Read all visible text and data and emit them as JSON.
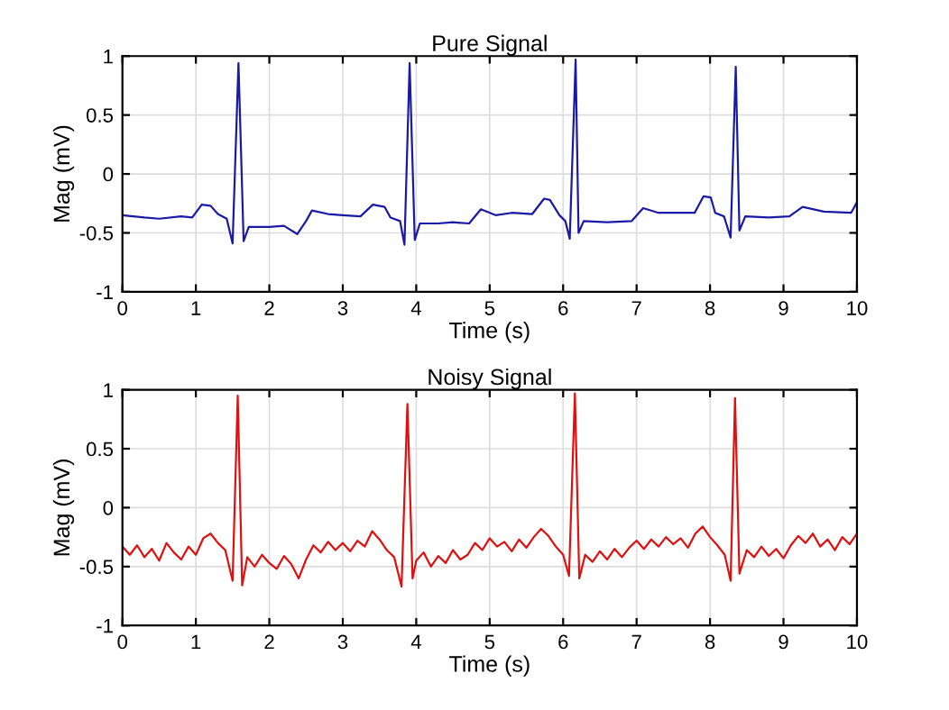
{
  "chart_data": [
    {
      "type": "line",
      "title": "Pure Signal",
      "xlabel": "Time (s)",
      "ylabel": "Mag (mV)",
      "xlim": [
        0,
        10
      ],
      "ylim": [
        -1,
        1
      ],
      "xticks": [
        0,
        1,
        2,
        3,
        4,
        5,
        6,
        7,
        8,
        9,
        10
      ],
      "yticks": [
        -1,
        -0.5,
        0,
        0.5,
        1
      ],
      "grid": true,
      "legend": false,
      "series": [
        {
          "color": "#1a1aa6",
          "x": [
            0,
            0.3,
            0.5,
            0.8,
            0.95,
            1.08,
            1.2,
            1.3,
            1.42,
            1.5,
            1.58,
            1.65,
            1.72,
            2.0,
            2.2,
            2.38,
            2.5,
            2.58,
            2.8,
            3.0,
            3.24,
            3.41,
            3.57,
            3.65,
            3.78,
            3.84,
            3.91,
            3.98,
            4.05,
            4.3,
            4.5,
            4.72,
            4.88,
            5.08,
            5.3,
            5.58,
            5.74,
            5.82,
            5.95,
            6.03,
            6.09,
            6.17,
            6.21,
            6.28,
            6.6,
            6.93,
            7.09,
            7.3,
            7.55,
            7.79,
            7.91,
            8.01,
            8.07,
            8.19,
            8.28,
            8.35,
            8.4,
            8.48,
            8.8,
            9.08,
            9.26,
            9.55,
            9.92,
            10
          ],
          "values": [
            -0.35,
            -0.37,
            -0.38,
            -0.36,
            -0.37,
            -0.26,
            -0.27,
            -0.34,
            -0.38,
            -0.59,
            0.94,
            -0.57,
            -0.45,
            -0.45,
            -0.44,
            -0.51,
            -0.4,
            -0.31,
            -0.34,
            -0.35,
            -0.36,
            -0.26,
            -0.28,
            -0.37,
            -0.4,
            -0.6,
            0.94,
            -0.56,
            -0.42,
            -0.42,
            -0.41,
            -0.42,
            -0.3,
            -0.35,
            -0.33,
            -0.34,
            -0.21,
            -0.22,
            -0.35,
            -0.4,
            -0.55,
            0.97,
            -0.5,
            -0.4,
            -0.41,
            -0.4,
            -0.29,
            -0.33,
            -0.33,
            -0.33,
            -0.19,
            -0.2,
            -0.33,
            -0.36,
            -0.54,
            0.91,
            -0.48,
            -0.36,
            -0.37,
            -0.36,
            -0.28,
            -0.32,
            -0.33,
            -0.24
          ]
        }
      ]
    },
    {
      "type": "line",
      "title": "Noisy Signal",
      "xlabel": "Time (s)",
      "ylabel": "Mag (mV)",
      "xlim": [
        0,
        10
      ],
      "ylim": [
        -1,
        1
      ],
      "xticks": [
        0,
        1,
        2,
        3,
        4,
        5,
        6,
        7,
        8,
        9,
        10
      ],
      "yticks": [
        -1,
        -0.5,
        0,
        0.5,
        1
      ],
      "grid": true,
      "legend": false,
      "series": [
        {
          "color": "#e01010",
          "x": [
            0,
            0.1,
            0.2,
            0.3,
            0.4,
            0.5,
            0.6,
            0.7,
            0.8,
            0.9,
            1.0,
            1.1,
            1.2,
            1.3,
            1.4,
            1.5,
            1.57,
            1.63,
            1.7,
            1.8,
            1.9,
            2.0,
            2.1,
            2.2,
            2.3,
            2.4,
            2.5,
            2.6,
            2.7,
            2.8,
            2.9,
            3.0,
            3.1,
            3.2,
            3.3,
            3.4,
            3.5,
            3.6,
            3.7,
            3.8,
            3.88,
            3.95,
            4.0,
            4.1,
            4.2,
            4.3,
            4.4,
            4.5,
            4.6,
            4.7,
            4.8,
            4.9,
            5.0,
            5.1,
            5.2,
            5.3,
            5.4,
            5.5,
            5.6,
            5.7,
            5.8,
            5.9,
            6.0,
            6.08,
            6.16,
            6.22,
            6.3,
            6.4,
            6.5,
            6.6,
            6.7,
            6.8,
            6.9,
            7.0,
            7.1,
            7.2,
            7.3,
            7.4,
            7.5,
            7.6,
            7.7,
            7.8,
            7.9,
            8.0,
            8.1,
            8.2,
            8.28,
            8.34,
            8.4,
            8.5,
            8.6,
            8.7,
            8.8,
            8.9,
            9.0,
            9.1,
            9.2,
            9.3,
            9.4,
            9.5,
            9.6,
            9.7,
            9.8,
            9.9,
            10
          ],
          "values": [
            -0.33,
            -0.4,
            -0.32,
            -0.42,
            -0.35,
            -0.45,
            -0.3,
            -0.38,
            -0.44,
            -0.33,
            -0.4,
            -0.26,
            -0.22,
            -0.3,
            -0.36,
            -0.62,
            0.95,
            -0.66,
            -0.42,
            -0.5,
            -0.4,
            -0.47,
            -0.52,
            -0.41,
            -0.48,
            -0.6,
            -0.44,
            -0.32,
            -0.38,
            -0.29,
            -0.36,
            -0.3,
            -0.37,
            -0.28,
            -0.33,
            -0.2,
            -0.27,
            -0.36,
            -0.42,
            -0.67,
            0.88,
            -0.6,
            -0.45,
            -0.38,
            -0.5,
            -0.41,
            -0.47,
            -0.36,
            -0.44,
            -0.4,
            -0.3,
            -0.36,
            -0.26,
            -0.33,
            -0.29,
            -0.37,
            -0.27,
            -0.34,
            -0.25,
            -0.18,
            -0.24,
            -0.33,
            -0.4,
            -0.58,
            0.97,
            -0.6,
            -0.4,
            -0.46,
            -0.37,
            -0.44,
            -0.35,
            -0.42,
            -0.34,
            -0.28,
            -0.35,
            -0.27,
            -0.33,
            -0.25,
            -0.31,
            -0.26,
            -0.34,
            -0.22,
            -0.16,
            -0.25,
            -0.32,
            -0.4,
            -0.62,
            0.93,
            -0.56,
            -0.36,
            -0.42,
            -0.33,
            -0.41,
            -0.35,
            -0.43,
            -0.32,
            -0.24,
            -0.3,
            -0.22,
            -0.33,
            -0.27,
            -0.36,
            -0.25,
            -0.31,
            -0.22
          ]
        }
      ]
    }
  ]
}
